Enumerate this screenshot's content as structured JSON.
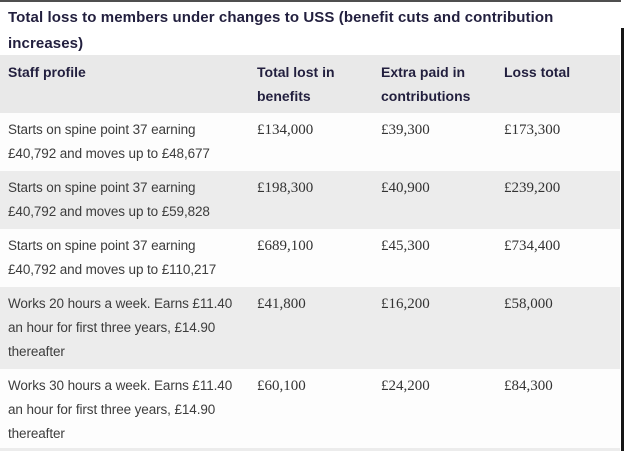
{
  "title": "Total loss to members under changes to USS (benefit cuts and contribution increases)",
  "chart_data": {
    "type": "table",
    "title": "Total loss to members under changes to USS (benefit cuts and contribution increases)",
    "columns": [
      "Staff profile",
      "Total lost in benefits",
      "Extra paid in contributions",
      "Loss total"
    ],
    "column_keys": [
      "staff-profile",
      "total-lost-in-benefits",
      "extra-paid-in-contributions",
      "loss-total"
    ],
    "rows": [
      [
        "Starts on spine point 37 earning £40,792 and moves up to £48,677",
        "£134,000",
        "£39,300",
        "£173,300"
      ],
      [
        "Starts on spine point 37 earning £40,792 and moves up to £59,828",
        "£198,300",
        "£40,900",
        "£239,200"
      ],
      [
        "Starts on spine point 37 earning £40,792 and moves up to £110,217",
        "£689,100",
        "£45,300",
        "£734,400"
      ],
      [
        "Works 20 hours a week. Earns £11.40 an hour for first three years, £14.90 thereafter",
        "£41,800",
        "£16,200",
        "£58,000"
      ],
      [
        "Works 30 hours a week. Earns £11.40 an hour for first three years, £14.90 thereafter",
        "£60,100",
        "£24,200",
        "£84,300"
      ]
    ],
    "values_numeric": {
      "total_lost_in_benefits": [
        134000,
        198300,
        689100,
        41800,
        60100
      ],
      "extra_paid_in_contributions": [
        39300,
        40900,
        45300,
        16200,
        24200
      ],
      "loss_total": [
        173300,
        239200,
        734400,
        58000,
        84300
      ]
    },
    "layout_hints": {
      "row_striping": "white-gray alternating",
      "header_background": "gray",
      "text_align": "left"
    }
  },
  "colors": {
    "heading_text": "#221f3e",
    "body_text": "#3d3d3d",
    "number_text": "#333333",
    "header_bg": "#e9e9e9",
    "row_bg": "#fdfdfd",
    "row_alt_bg": "#ececec",
    "border_dark": "#4f4f4f",
    "border_darker": "#161616"
  }
}
